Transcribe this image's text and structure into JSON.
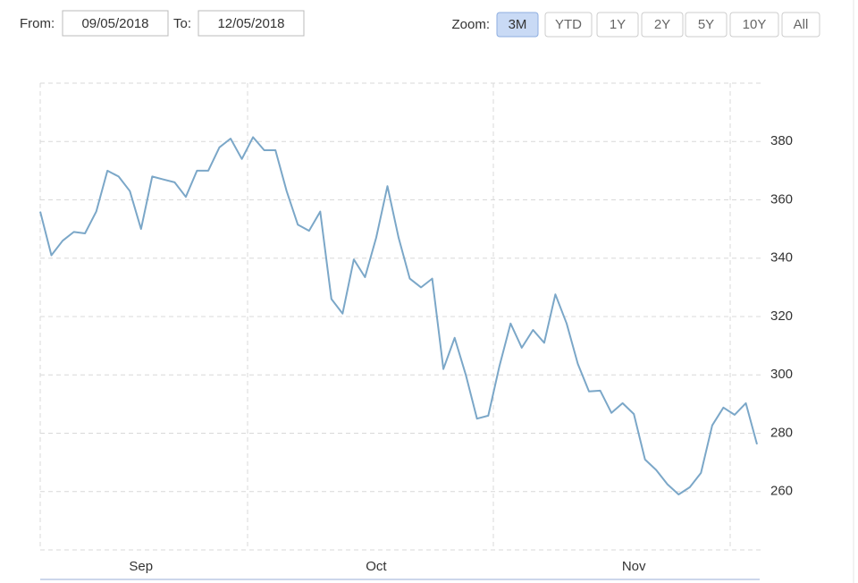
{
  "range_selector": {
    "from_label": "From:",
    "from_value": "09/05/2018",
    "to_label": "To:",
    "to_value": "12/05/2018",
    "zoom_label": "Zoom:",
    "buttons": [
      "3M",
      "YTD",
      "1Y",
      "2Y",
      "5Y",
      "10Y",
      "All"
    ],
    "selected_index": 0
  },
  "chart_data": {
    "type": "line",
    "categories": [
      null,
      null,
      null,
      null,
      null,
      null,
      null,
      null,
      null,
      "Sep",
      null,
      null,
      null,
      null,
      null,
      null,
      null,
      null,
      null,
      null,
      null,
      null,
      null,
      null,
      null,
      null,
      null,
      null,
      null,
      null,
      "Oct",
      null,
      null,
      null,
      null,
      null,
      null,
      null,
      null,
      null,
      null,
      null,
      null,
      null,
      null,
      null,
      null,
      null,
      null,
      null,
      null,
      null,
      null,
      "Nov",
      null,
      null,
      null,
      null,
      null,
      null,
      null,
      null,
      null,
      null,
      null
    ],
    "values": [
      356,
      341,
      346,
      349,
      348.5,
      356,
      370,
      368,
      363,
      350,
      368,
      367,
      366,
      361,
      370,
      370,
      378,
      381,
      374,
      381.5,
      377,
      377,
      363,
      351.5,
      349.4,
      356,
      326,
      321,
      339.6,
      333.5,
      347,
      364.7,
      347,
      333,
      330,
      333,
      302,
      312.7,
      300,
      285,
      286,
      303,
      317.6,
      309.3,
      315.4,
      311,
      327.6,
      317.6,
      303.8,
      294.3,
      294.6,
      287,
      290.3,
      286.6,
      271,
      267.4,
      262.5,
      259,
      261.5,
      266.4,
      282.7,
      288.8,
      286.3,
      290.3,
      276.2
    ],
    "color": "#7ba7c8",
    "ylim": [
      240,
      400
    ],
    "yticks": [
      260,
      280,
      300,
      320,
      340,
      360,
      380
    ],
    "grid": true
  }
}
